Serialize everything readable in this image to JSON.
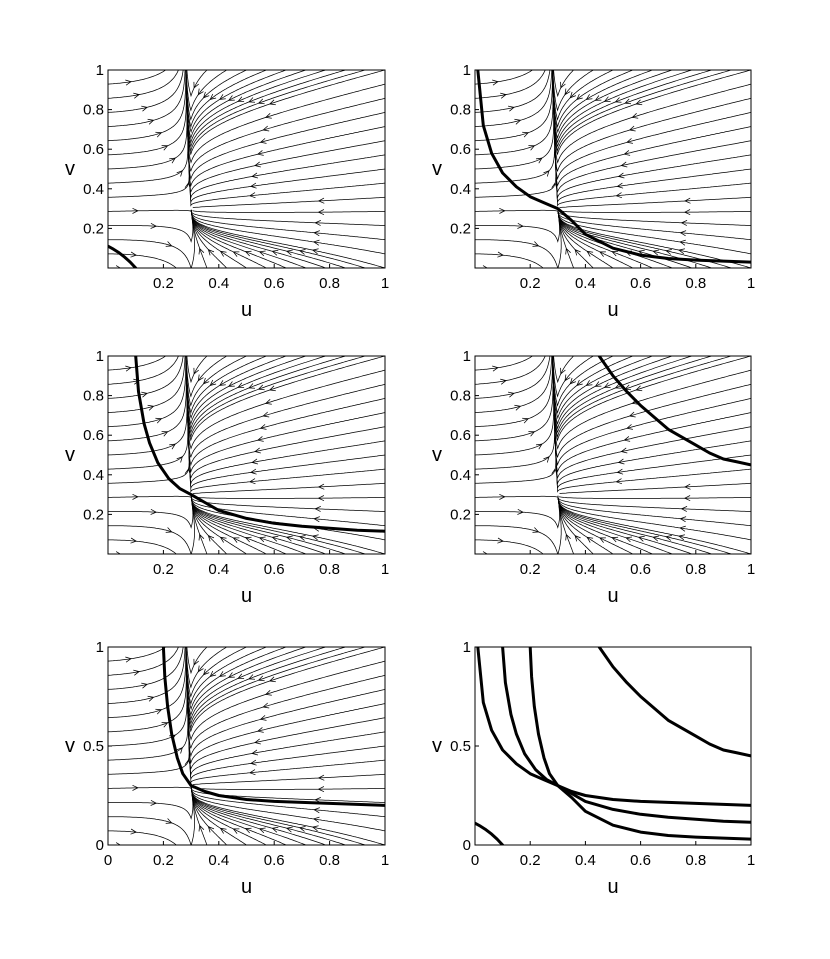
{
  "chart_data": [
    {
      "type": "line",
      "panel": "top-left",
      "xlabel": "u",
      "ylabel": "v",
      "xlim": [
        0,
        1
      ],
      "ylim": [
        0,
        1
      ],
      "xticks": [
        "0.2",
        "0.4",
        "0.6",
        "0.8",
        "1"
      ],
      "yticks": [
        "0.2",
        "0.4",
        "0.6",
        "0.8",
        "1"
      ],
      "streamlines": true,
      "equilibrium": [
        0.3,
        0.3
      ],
      "series": [
        {
          "x": [
            0.0,
            0.02,
            0.04,
            0.06,
            0.08,
            0.1
          ],
          "y": [
            0.11,
            0.095,
            0.077,
            0.055,
            0.03,
            0.0
          ]
        }
      ]
    },
    {
      "type": "line",
      "panel": "top-right",
      "xlabel": "u",
      "ylabel": "v",
      "xlim": [
        0,
        1
      ],
      "ylim": [
        0,
        1
      ],
      "xticks": [
        "0.2",
        "0.4",
        "0.6",
        "0.8",
        "1"
      ],
      "yticks": [
        "0.2",
        "0.4",
        "0.6",
        "0.8",
        "1"
      ],
      "streamlines": true,
      "equilibrium": [
        0.3,
        0.3
      ],
      "series": [
        {
          "x": [
            0.01,
            0.03,
            0.06,
            0.1,
            0.15,
            0.2,
            0.25,
            0.3,
            0.35,
            0.4,
            0.5,
            0.6,
            0.7,
            0.8,
            0.9,
            1.0
          ],
          "y": [
            1.0,
            0.72,
            0.58,
            0.48,
            0.41,
            0.36,
            0.33,
            0.3,
            0.24,
            0.17,
            0.1,
            0.065,
            0.048,
            0.04,
            0.035,
            0.03
          ]
        }
      ]
    },
    {
      "type": "line",
      "panel": "middle-left",
      "xlabel": "u",
      "ylabel": "v",
      "xlim": [
        0,
        1
      ],
      "ylim": [
        0,
        1
      ],
      "xticks": [
        "0.2",
        "0.4",
        "0.6",
        "0.8",
        "1"
      ],
      "yticks": [
        "0.2",
        "0.4",
        "0.6",
        "0.8",
        "1"
      ],
      "streamlines": true,
      "equilibrium": [
        0.3,
        0.3
      ],
      "series": [
        {
          "x": [
            0.1,
            0.11,
            0.13,
            0.15,
            0.18,
            0.22,
            0.26,
            0.3,
            0.35,
            0.4,
            0.5,
            0.6,
            0.7,
            0.8,
            0.9,
            1.0
          ],
          "y": [
            1.0,
            0.82,
            0.66,
            0.56,
            0.46,
            0.38,
            0.33,
            0.3,
            0.26,
            0.22,
            0.18,
            0.155,
            0.14,
            0.13,
            0.12,
            0.115
          ]
        }
      ]
    },
    {
      "type": "line",
      "panel": "middle-right",
      "xlabel": "u",
      "ylabel": "v",
      "xlim": [
        0,
        1
      ],
      "ylim": [
        0,
        1
      ],
      "xticks": [
        "0.2",
        "0.4",
        "0.6",
        "0.8",
        "1"
      ],
      "yticks": [
        "0.2",
        "0.4",
        "0.6",
        "0.8",
        "1"
      ],
      "streamlines": true,
      "equilibrium": [
        0.3,
        0.3
      ],
      "series": [
        {
          "x": [
            0.45,
            0.5,
            0.55,
            0.6,
            0.65,
            0.7,
            0.75,
            0.8,
            0.85,
            0.9,
            0.95,
            1.0
          ],
          "y": [
            1.0,
            0.9,
            0.82,
            0.75,
            0.69,
            0.63,
            0.59,
            0.55,
            0.51,
            0.48,
            0.465,
            0.45
          ]
        }
      ]
    },
    {
      "type": "line",
      "panel": "bottom-left",
      "xlabel": "u",
      "ylabel": "v",
      "xlim": [
        0,
        1
      ],
      "ylim": [
        0,
        1
      ],
      "xticks": [
        "0",
        "0.2",
        "0.4",
        "0.6",
        "0.8",
        "1"
      ],
      "yticks": [
        "0",
        "0.5",
        "1"
      ],
      "streamlines": true,
      "equilibrium": [
        0.3,
        0.3
      ],
      "series": [
        {
          "x": [
            0.2,
            0.205,
            0.215,
            0.23,
            0.25,
            0.27,
            0.3,
            0.35,
            0.4,
            0.5,
            0.6,
            0.7,
            0.8,
            0.9,
            1.0
          ],
          "y": [
            1.0,
            0.85,
            0.7,
            0.56,
            0.44,
            0.36,
            0.3,
            0.27,
            0.25,
            0.23,
            0.22,
            0.215,
            0.21,
            0.205,
            0.2
          ]
        }
      ]
    },
    {
      "type": "line",
      "panel": "bottom-right",
      "xlabel": "u",
      "ylabel": "v",
      "xlim": [
        0,
        1
      ],
      "ylim": [
        0,
        1
      ],
      "xticks": [
        "0",
        "0.2",
        "0.4",
        "0.6",
        "0.8",
        "1"
      ],
      "yticks": [
        "0",
        "0.5",
        "1"
      ],
      "streamlines": false,
      "series": [
        {
          "x": [
            0.0,
            0.02,
            0.04,
            0.06,
            0.08,
            0.1
          ],
          "y": [
            0.11,
            0.095,
            0.077,
            0.055,
            0.03,
            0.0
          ]
        },
        {
          "x": [
            0.01,
            0.03,
            0.06,
            0.1,
            0.15,
            0.2,
            0.25,
            0.3,
            0.35,
            0.4,
            0.5,
            0.6,
            0.7,
            0.8,
            0.9,
            1.0
          ],
          "y": [
            1.0,
            0.72,
            0.58,
            0.48,
            0.41,
            0.36,
            0.33,
            0.3,
            0.24,
            0.17,
            0.1,
            0.065,
            0.048,
            0.04,
            0.035,
            0.03
          ]
        },
        {
          "x": [
            0.1,
            0.11,
            0.13,
            0.15,
            0.18,
            0.22,
            0.26,
            0.3,
            0.35,
            0.4,
            0.5,
            0.6,
            0.7,
            0.8,
            0.9,
            1.0
          ],
          "y": [
            1.0,
            0.82,
            0.66,
            0.56,
            0.46,
            0.38,
            0.33,
            0.3,
            0.26,
            0.22,
            0.18,
            0.155,
            0.14,
            0.13,
            0.12,
            0.115
          ]
        },
        {
          "x": [
            0.45,
            0.5,
            0.55,
            0.6,
            0.65,
            0.7,
            0.75,
            0.8,
            0.85,
            0.9,
            0.95,
            1.0
          ],
          "y": [
            1.0,
            0.9,
            0.82,
            0.75,
            0.69,
            0.63,
            0.59,
            0.55,
            0.51,
            0.48,
            0.465,
            0.45
          ]
        },
        {
          "x": [
            0.2,
            0.205,
            0.215,
            0.23,
            0.25,
            0.27,
            0.3,
            0.35,
            0.4,
            0.5,
            0.6,
            0.7,
            0.8,
            0.9,
            1.0
          ],
          "y": [
            1.0,
            0.85,
            0.7,
            0.56,
            0.44,
            0.36,
            0.3,
            0.27,
            0.25,
            0.23,
            0.22,
            0.215,
            0.21,
            0.205,
            0.2
          ]
        }
      ]
    }
  ]
}
